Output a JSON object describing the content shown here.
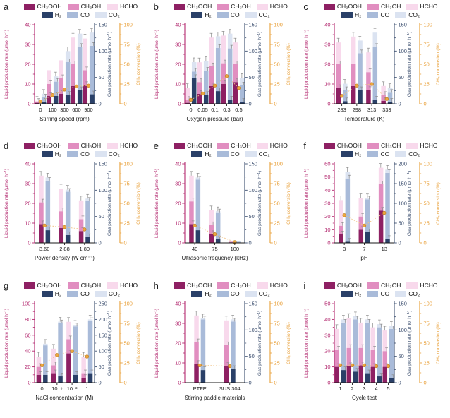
{
  "colors": {
    "series": {
      "ch3ooh": "#8e2063",
      "ch3oh": "#e18ec0",
      "hcho": "#f8d9ec",
      "h2": "#2a4068",
      "co": "#a9bbd9",
      "co2": "#dbe3f1"
    },
    "liquid_axis": "#b3286f",
    "gas_axis": "#3d5070",
    "conversion_axis": "#e9a13b",
    "conversion_line": "#f0c285",
    "conversion_marker": "#eda73f",
    "conversion_marker_stroke": "#c07f1f",
    "error_bar": "#8c8c8c",
    "x_axis": "#1a1a1a"
  },
  "axis_labels": {
    "liquid": "Liquid production rate (μmol h⁻¹)",
    "gas": "Gas production rate (μmol h⁻¹)",
    "conversion": "CH₄ conversion (%)"
  },
  "legend": {
    "rows": [
      [
        {
          "id": "ch3ooh",
          "label": "CH₃OOH"
        },
        {
          "id": "ch3oh",
          "label": "CH₃OH"
        },
        {
          "id": "hcho",
          "label": "HCHO"
        }
      ],
      [
        {
          "id": "h2",
          "label": "H₂"
        },
        {
          "id": "co",
          "label": "CO"
        },
        {
          "id": "co2",
          "label": "CO₂"
        }
      ]
    ]
  },
  "chart_data": [
    {
      "letter": "a",
      "type": "bar",
      "xlabel": "Stirring speed (rpm)",
      "categories": [
        "0",
        "100",
        "300",
        "600",
        "900"
      ],
      "axes": {
        "liquid": {
          "min": 0,
          "max": 40,
          "step": 10
        },
        "gas": {
          "min": 0,
          "max": 150,
          "step": 50
        },
        "conversion": {
          "min": 0,
          "max": 100,
          "step": 25
        }
      },
      "series": {
        "ch3ooh": [
          0.5,
          4,
          5,
          9,
          9.5
        ],
        "ch3oh": [
          0.5,
          6,
          8,
          11,
          7.5
        ],
        "hcho": [
          0.5,
          7,
          9,
          13.5,
          16
        ],
        "h2": [
          4,
          15,
          17,
          26,
          18
        ],
        "co": [
          8,
          27,
          62,
          82,
          92
        ],
        "co2": [
          7,
          10,
          21,
          25,
          25
        ],
        "conversion": [
          3,
          11,
          18,
          22,
          23
        ]
      }
    },
    {
      "letter": "b",
      "type": "bar",
      "xlabel": "Oxygen pressure (bar)",
      "categories": [
        "0",
        "0.05",
        "0.1",
        "0.3",
        "0.5"
      ],
      "axes": {
        "liquid": {
          "min": 0,
          "max": 40,
          "step": 10
        },
        "gas": {
          "min": 0,
          "max": 150,
          "step": 50
        },
        "conversion": {
          "min": 0,
          "max": 100,
          "step": 25
        }
      },
      "series": {
        "ch3ooh": [
          0.5,
          5,
          9,
          10,
          11
        ],
        "ch3oh": [
          1.5,
          6,
          10,
          10.5,
          9
        ],
        "hcho": [
          6,
          10,
          14.5,
          14,
          11
        ],
        "h2": [
          49,
          17,
          24,
          8,
          4
        ],
        "co": [
          12,
          46,
          82,
          97,
          31
        ],
        "co2": [
          18,
          18,
          22,
          28,
          14
        ],
        "conversion": [
          5,
          13,
          23,
          35,
          20
        ]
      }
    },
    {
      "letter": "c",
      "type": "bar",
      "xlabel": "Temperature (K)",
      "categories": [
        "283",
        "298",
        "313",
        "333"
      ],
      "axes": {
        "liquid": {
          "min": 0,
          "max": 40,
          "step": 10
        },
        "gas": {
          "min": 0,
          "max": 150,
          "step": 50
        },
        "conversion": {
          "min": 0,
          "max": 100,
          "step": 25
        }
      },
      "series": {
        "ch3ooh": [
          8,
          9,
          7,
          1.5
        ],
        "ch3oh": [
          12,
          11,
          9,
          3
        ],
        "hcho": [
          11,
          14,
          10,
          4.5
        ],
        "h2": [
          5,
          26,
          8,
          4
        ],
        "co": [
          21,
          70,
          100,
          17
        ],
        "co2": [
          12,
          24,
          27,
          9
        ],
        "conversion": [
          10,
          23,
          25,
          6
        ]
      }
    },
    {
      "letter": "d",
      "type": "bar",
      "xlabel": "Power density  (W cm⁻³)",
      "categories": [
        "3.60",
        "2.88",
        "1.80"
      ],
      "axes": {
        "liquid": {
          "min": 0,
          "max": 40,
          "step": 10
        },
        "gas": {
          "min": 0,
          "max": 150,
          "step": 50
        },
        "conversion": {
          "min": 0,
          "max": 100,
          "step": 25
        }
      },
      "series": {
        "ch3ooh": [
          9.5,
          7.5,
          6
        ],
        "ch3oh": [
          11,
          8.5,
          6
        ],
        "hcho": [
          13.5,
          11.5,
          9.5
        ],
        "h2": [
          24,
          15,
          11
        ],
        "co": [
          94,
          82,
          69
        ],
        "co2": [
          6,
          4,
          4
        ],
        "conversion": [
          22,
          20,
          17
        ]
      }
    },
    {
      "letter": "e",
      "type": "bar",
      "xlabel": "Ultrasonic frequency (kHz)",
      "categories": [
        "40",
        "75",
        "100"
      ],
      "axes": {
        "liquid": {
          "min": 0,
          "max": 40,
          "step": 10
        },
        "gas": {
          "min": 0,
          "max": 150,
          "step": 50
        },
        "conversion": {
          "min": 0,
          "max": 100,
          "step": 25
        }
      },
      "series": {
        "ch3ooh": [
          9.5,
          4.5,
          0.3
        ],
        "ch3oh": [
          11.5,
          4.5,
          0.3
        ],
        "hcho": [
          13,
          7.5,
          0.4
        ],
        "h2": [
          24,
          7,
          1
        ],
        "co": [
          96,
          51,
          1
        ],
        "co2": [
          4,
          2,
          1
        ],
        "conversion": [
          22,
          11,
          1
        ]
      }
    },
    {
      "letter": "f",
      "type": "bar",
      "xlabel": "pH",
      "categories": [
        "3",
        "7",
        "13"
      ],
      "axes": {
        "liquid": {
          "min": 0,
          "max": 60,
          "step": 10
        },
        "gas": {
          "min": 0,
          "max": 200,
          "step": 50
        },
        "conversion": {
          "min": 0,
          "max": 100,
          "step": 25
        }
      },
      "series": {
        "ch3ooh": [
          6.5,
          10,
          24.5
        ],
        "ch3oh": [
          6.5,
          10,
          20
        ],
        "hcho": [
          19.5,
          14,
          12.5
        ],
        "h2": [
          3,
          27,
          10
        ],
        "co": [
          160,
          83,
          167
        ],
        "co2": [
          17,
          3,
          8
        ],
        "conversion": [
          35,
          22,
          38
        ]
      }
    },
    {
      "letter": "g",
      "type": "bar",
      "xlabel": "NaCl concentration (M)",
      "categories": [
        "0",
        "10⁻⁶",
        "10⁻³",
        "1"
      ],
      "axes": {
        "liquid": {
          "min": 0,
          "max": 100,
          "step": 20
        },
        "gas": {
          "min": 0,
          "max": 250,
          "step": 50
        },
        "conversion": {
          "min": 0,
          "max": 100,
          "step": 25
        }
      },
      "series": {
        "ch3ooh": [
          10,
          12,
          37,
          6
        ],
        "ch3oh": [
          10,
          10,
          18,
          6
        ],
        "hcho": [
          13,
          21,
          22,
          21
        ],
        "h2": [
          25,
          20,
          25,
          30
        ],
        "co": [
          93,
          168,
          153,
          165
        ],
        "co2": [
          5,
          5,
          5,
          5
        ],
        "conversion": [
          22,
          35,
          40,
          33
        ]
      }
    },
    {
      "letter": "h",
      "type": "bar",
      "xlabel": "Stirring paddle materials",
      "categories": [
        "PTFE",
        "SUS 304"
      ],
      "axes": {
        "liquid": {
          "min": 0,
          "max": 40,
          "step": 10
        },
        "gas": {
          "min": 0,
          "max": 150,
          "step": 50
        },
        "conversion": {
          "min": 0,
          "max": 100,
          "step": 25
        }
      },
      "series": {
        "ch3ooh": [
          9.5,
          8.5
        ],
        "ch3oh": [
          11,
          10.5
        ],
        "hcho": [
          13.5,
          12.5
        ],
        "h2": [
          24,
          26
        ],
        "co": [
          96,
          90
        ],
        "co2": [
          2,
          4
        ],
        "conversion": [
          22,
          21
        ]
      }
    },
    {
      "letter": "i",
      "type": "bar",
      "xlabel": "Cycle test",
      "categories": [
        "1",
        "2",
        "3",
        "4",
        "5"
      ],
      "axes": {
        "liquid": {
          "min": 0,
          "max": 50,
          "step": 10
        },
        "gas": {
          "min": 0,
          "max": 150,
          "step": 50
        },
        "conversion": {
          "min": 0,
          "max": 100,
          "step": 25
        }
      },
      "series": {
        "ch3ooh": [
          10,
          10.5,
          11,
          10,
          10
        ],
        "ch3oh": [
          11,
          11.5,
          11,
          11,
          10
        ],
        "hcho": [
          13,
          19,
          16,
          14,
          13
        ],
        "h2": [
          24,
          21,
          18,
          12,
          9
        ],
        "co": [
          90,
          99,
          96,
          93,
          93
        ],
        "co2": [
          6,
          6,
          6,
          6,
          6
        ],
        "conversion": [
          22,
          22,
          22,
          21,
          21
        ]
      }
    }
  ]
}
